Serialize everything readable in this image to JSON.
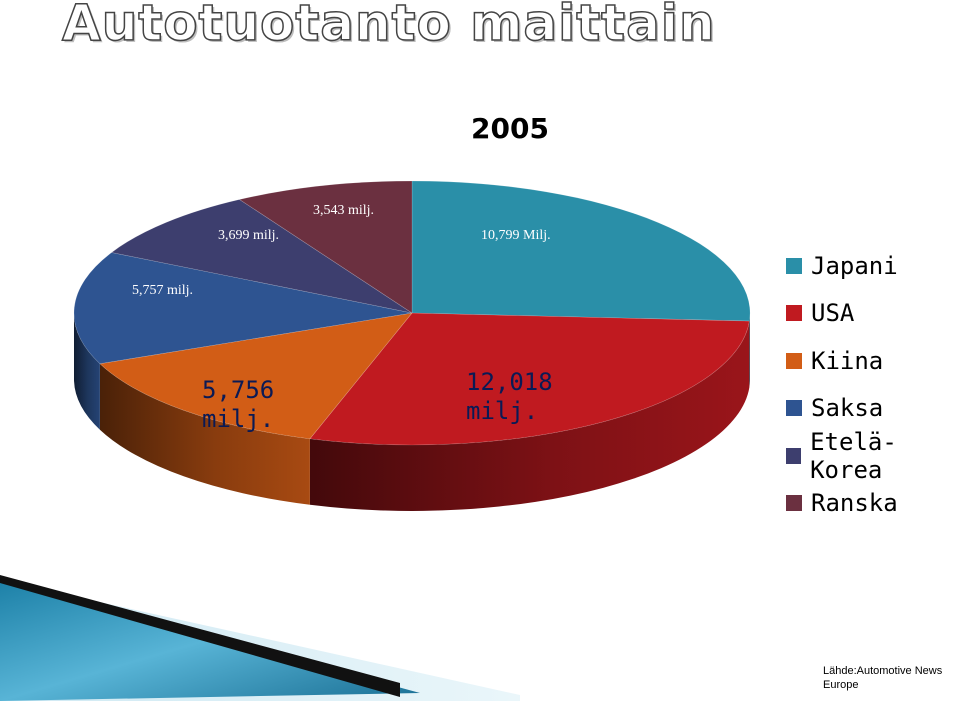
{
  "slide": {
    "title": "Autotuotanto maittain",
    "source": "Lähde:Automotive News Europe"
  },
  "colors": {
    "japani": "#2a8fa8",
    "usa": "#c01a20",
    "kiina": "#d25d16",
    "saksa": "#2e5491",
    "etela_korea": "#3d3e6e",
    "ranska": "#6b3040"
  },
  "chart_data": {
    "type": "pie",
    "title": "2005",
    "legend_position": "right",
    "slices": [
      {
        "name": "Japani",
        "value": 10.799,
        "label": "10,799 Milj.",
        "color": "#2a8fa8"
      },
      {
        "name": "USA",
        "value": 12.018,
        "label": "12,018 milj.",
        "color": "#c01a20"
      },
      {
        "name": "Kiina",
        "value": 5.756,
        "label": "5,756 milj.",
        "color": "#d25d16"
      },
      {
        "name": "Saksa",
        "value": 5.757,
        "label": "5,757 milj.",
        "color": "#2e5491"
      },
      {
        "name": "Etelä-Korea",
        "value": 3.699,
        "label": "3,699 milj.",
        "color": "#3d3e6e"
      },
      {
        "name": "Ranska",
        "value": 3.543,
        "label": "3,543 milj.",
        "color": "#6b3040"
      }
    ]
  }
}
